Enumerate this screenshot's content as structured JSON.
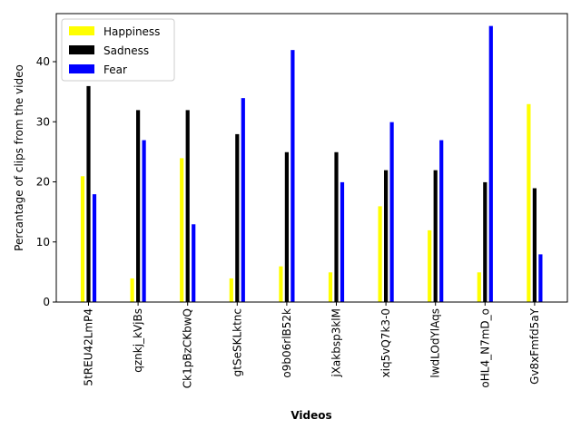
{
  "chart_data": {
    "type": "bar",
    "title": "",
    "xlabel": "Videos",
    "ylabel": "Percantage of clips from the video",
    "ylim": [
      0,
      48
    ],
    "yticks": [
      0,
      10,
      20,
      30,
      40
    ],
    "grid": false,
    "legend_position": "upper left",
    "categories": [
      "5tREU42LmP4",
      "qznkj_kVjBs",
      "Ck1pBzCKbwQ",
      "gtSeSKLktnc",
      "o9b06rlB52k",
      "jXakbsp3klM",
      "xiq5vQ7k3-0",
      "lwdLOdYlAqs",
      "oHL4_N7mD_o",
      "Gv8xFmfd5aY"
    ],
    "series": [
      {
        "name": "Happiness",
        "color": "#ffff00",
        "values": [
          21,
          4,
          24,
          4,
          6,
          5,
          16,
          12,
          5,
          33
        ]
      },
      {
        "name": "Sadness",
        "color": "#000000",
        "values": [
          36,
          32,
          32,
          28,
          25,
          25,
          22,
          22,
          20,
          19
        ]
      },
      {
        "name": "Fear",
        "color": "#0000ff",
        "values": [
          18,
          27,
          13,
          34,
          42,
          20,
          30,
          27,
          46,
          8
        ]
      }
    ]
  }
}
